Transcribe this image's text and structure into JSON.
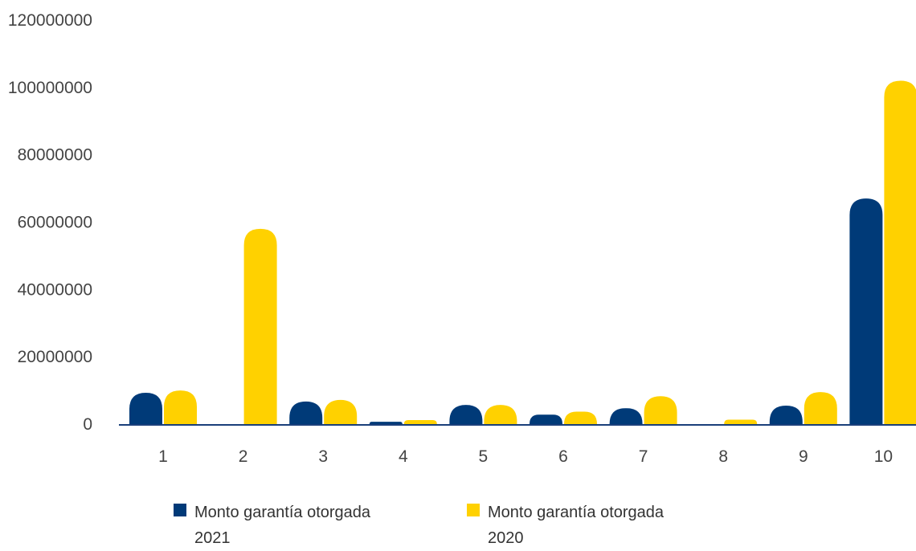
{
  "chart_data": {
    "type": "bar",
    "categories": [
      "1",
      "2",
      "3",
      "4",
      "5",
      "6",
      "7",
      "8",
      "9",
      "10"
    ],
    "series": [
      {
        "name": "Monto garantía otorgada 2021",
        "color": "#003a78",
        "values": [
          9300000,
          0,
          6700000,
          700000,
          5700000,
          2800000,
          4700000,
          0,
          5500000,
          67000000
        ]
      },
      {
        "name": "Monto garantía otorgada 2020",
        "color": "#ffd100",
        "values": [
          10000000,
          58000000,
          7200000,
          1200000,
          5700000,
          3700000,
          8300000,
          1300000,
          9500000,
          102000000
        ]
      }
    ],
    "yticks": [
      "0",
      "20000000",
      "40000000",
      "60000000",
      "80000000",
      "100000000",
      "120000000"
    ],
    "ylim": [
      0,
      120000000
    ],
    "legend_position": "bottom",
    "grid": false
  }
}
